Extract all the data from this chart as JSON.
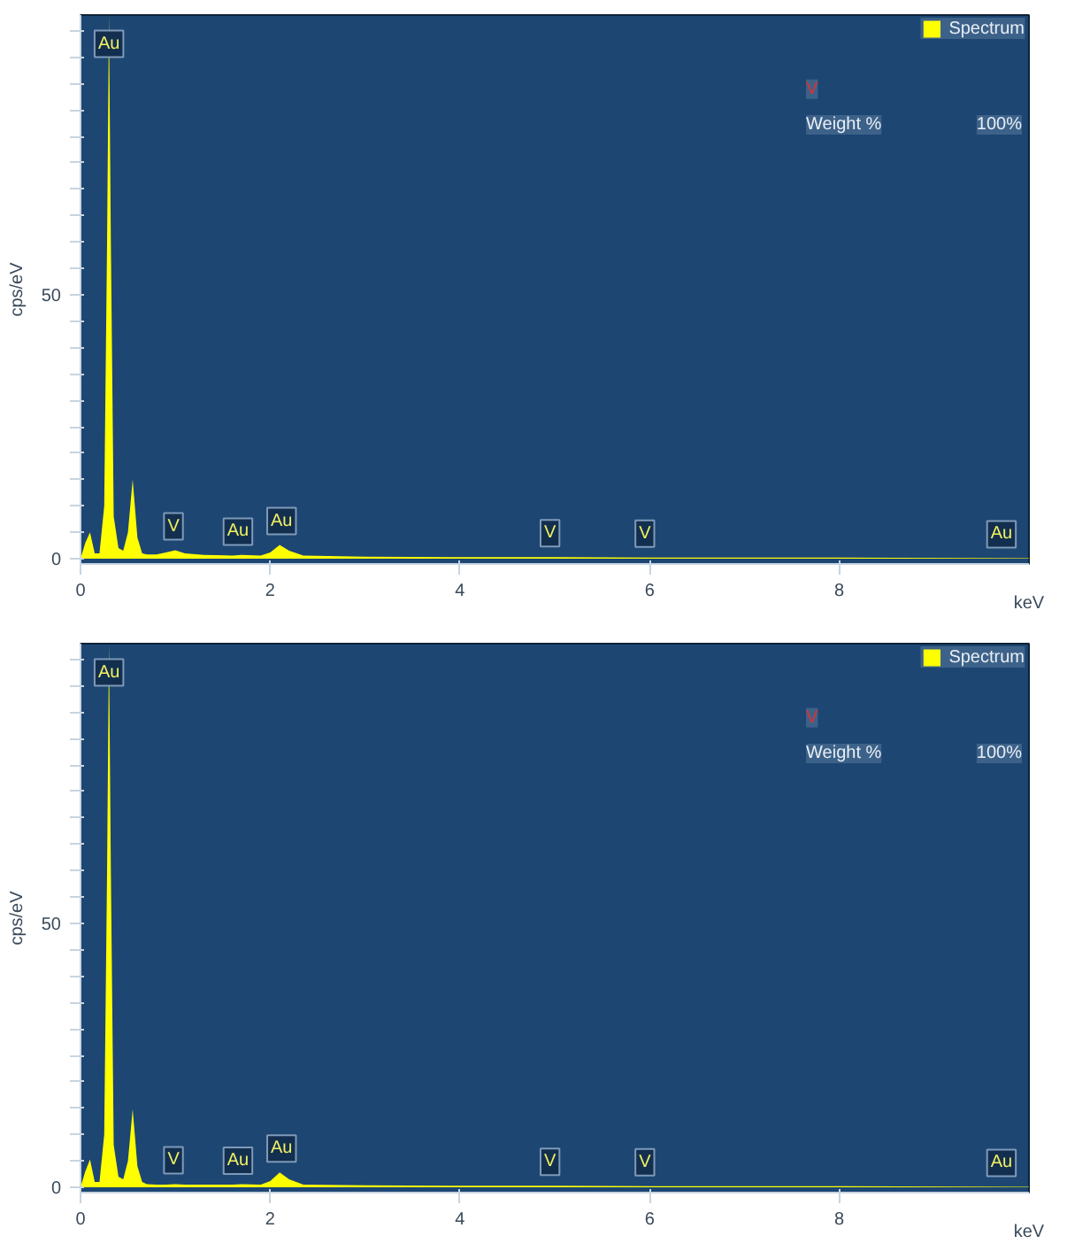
{
  "chart_data": [
    {
      "type": "area",
      "xlabel": "keV",
      "ylabel": "cps/eV",
      "legend": "top right",
      "grid": false,
      "x": [
        0,
        0.05,
        0.1,
        0.15,
        0.2,
        0.25,
        0.28,
        0.3,
        0.32,
        0.35,
        0.4,
        0.45,
        0.5,
        0.55,
        0.6,
        0.65,
        0.7,
        0.8,
        0.9,
        1.0,
        1.1,
        1.3,
        1.6,
        1.7,
        1.9,
        2.0,
        2.1,
        2.2,
        2.35,
        3,
        4,
        5,
        6,
        8,
        10
      ],
      "series": [
        {
          "name": "Spectrum",
          "color": "#ffff00",
          "values": [
            0,
            3,
            5,
            1,
            1,
            10,
            60,
            103,
            60,
            8,
            2,
            1.5,
            5,
            15,
            4,
            1,
            0.8,
            0.8,
            1.2,
            1.6,
            1,
            0.7,
            0.6,
            0.7,
            0.6,
            1.2,
            2.6,
            1.5,
            0.6,
            0.4,
            0.3,
            0.3,
            0.2,
            0.2,
            0.1
          ]
        }
      ],
      "xlim": [
        0,
        10
      ],
      "ylim": [
        -1,
        103
      ],
      "xticks": [
        0,
        2,
        4,
        6,
        8
      ],
      "yticks": [
        0,
        {
          "value": 5,
          "label": null
        },
        {
          "value": 10,
          "label": null
        },
        {
          "value": 15,
          "label": null
        },
        {
          "value": 20,
          "label": null
        },
        {
          "value": 25,
          "label": null
        },
        {
          "value": 30,
          "label": null
        },
        {
          "value": 35,
          "label": null
        },
        {
          "value": 40,
          "label": null
        },
        {
          "value": 45,
          "label": null
        },
        50,
        {
          "value": 55,
          "label": null
        },
        {
          "value": 60,
          "label": null
        },
        {
          "value": 65,
          "label": null
        },
        {
          "value": 70,
          "label": null
        },
        {
          "value": 75,
          "label": null
        },
        {
          "value": 80,
          "label": null
        },
        {
          "value": 85,
          "label": null
        },
        {
          "value": 90,
          "label": null
        },
        {
          "value": 95,
          "label": null
        },
        {
          "value": 100,
          "label": null
        }
      ],
      "annotations": [
        {
          "text": "Au",
          "x": 0.3,
          "y": 93
        },
        {
          "text": "V",
          "x": 0.98,
          "y": 1.6
        },
        {
          "text": "Au",
          "x": 1.66,
          "y": 0.6
        },
        {
          "text": "Au",
          "x": 2.12,
          "y": 2.6
        },
        {
          "text": "V",
          "x": 4.95,
          "y": 0.3
        },
        {
          "text": "V",
          "x": 5.95,
          "y": 0.2
        },
        {
          "text": "Au",
          "x": 9.71,
          "y": 0.1
        },
        "V",
        "Weight %",
        "100%"
      ]
    },
    {
      "type": "area",
      "xlabel": "keV",
      "ylabel": "cps/eV",
      "legend": "top right",
      "grid": false,
      "x": [
        0,
        0.05,
        0.1,
        0.15,
        0.2,
        0.25,
        0.28,
        0.3,
        0.32,
        0.35,
        0.4,
        0.45,
        0.5,
        0.55,
        0.6,
        0.65,
        0.7,
        0.8,
        0.9,
        1.0,
        1.1,
        1.3,
        1.6,
        1.7,
        1.9,
        2.0,
        2.1,
        2.2,
        2.35,
        3,
        4,
        5,
        6,
        8,
        10
      ],
      "series": [
        {
          "name": "Spectrum",
          "color": "#ffff00",
          "values": [
            0,
            3,
            5.3,
            1,
            1,
            10,
            60,
            103,
            60,
            8,
            2,
            1.5,
            5,
            14.8,
            4,
            1,
            0.6,
            0.5,
            0.5,
            0.6,
            0.5,
            0.5,
            0.5,
            0.6,
            0.5,
            1.2,
            2.8,
            1.5,
            0.5,
            0.4,
            0.3,
            0.3,
            0.2,
            0.2,
            0.1
          ]
        }
      ],
      "xlim": [
        0,
        10
      ],
      "ylim": [
        -1,
        103
      ],
      "xticks": [
        0,
        2,
        4,
        6,
        8
      ],
      "yticks": [
        0,
        {
          "value": 5,
          "label": null
        },
        {
          "value": 10,
          "label": null
        },
        {
          "value": 15,
          "label": null
        },
        {
          "value": 20,
          "label": null
        },
        {
          "value": 25,
          "label": null
        },
        {
          "value": 30,
          "label": null
        },
        {
          "value": 35,
          "label": null
        },
        {
          "value": 40,
          "label": null
        },
        {
          "value": 45,
          "label": null
        },
        50,
        {
          "value": 55,
          "label": null
        },
        {
          "value": 60,
          "label": null
        },
        {
          "value": 65,
          "label": null
        },
        {
          "value": 70,
          "label": null
        },
        {
          "value": 75,
          "label": null
        },
        {
          "value": 80,
          "label": null
        },
        {
          "value": 85,
          "label": null
        },
        {
          "value": 90,
          "label": null
        },
        {
          "value": 95,
          "label": null
        },
        {
          "value": 100,
          "label": null
        }
      ],
      "annotations": [
        {
          "text": "Au",
          "x": 0.3,
          "y": 93
        },
        {
          "text": "V",
          "x": 0.98,
          "y": 0.6
        },
        {
          "text": "Au",
          "x": 1.66,
          "y": 0.5
        },
        {
          "text": "Au",
          "x": 2.12,
          "y": 2.8
        },
        {
          "text": "V",
          "x": 4.95,
          "y": 0.3
        },
        {
          "text": "V",
          "x": 5.95,
          "y": 0.2
        },
        {
          "text": "Au",
          "x": 9.71,
          "y": 0.1
        },
        "V",
        "Weight %",
        "100%"
      ]
    }
  ]
}
